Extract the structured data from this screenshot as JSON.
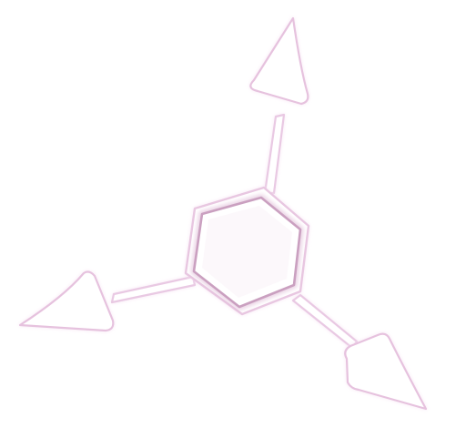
{
  "graphic": {
    "name": "triple-arrow-hexagon-spinner",
    "fill_color": "#ffffff",
    "glow_color": "#f3d9ef",
    "outline_color": "#e7c3df",
    "hex_inner_ring_color": "#d7a9cc"
  }
}
